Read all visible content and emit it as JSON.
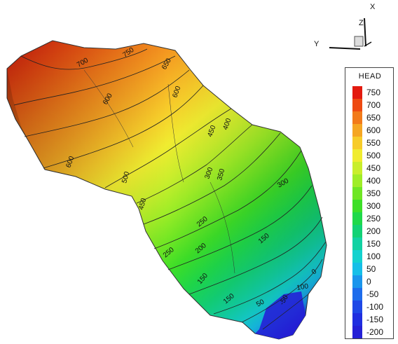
{
  "axes_triad": {
    "x": "X",
    "y": "Y",
    "z": "Z"
  },
  "legend": {
    "title": "HEAD",
    "entries": [
      {
        "label": "750",
        "color": "#e31a0f"
      },
      {
        "label": "700",
        "color": "#ee4a12"
      },
      {
        "label": "650",
        "color": "#f27a1a"
      },
      {
        "label": "600",
        "color": "#f5a623"
      },
      {
        "label": "550",
        "color": "#f7cc2a"
      },
      {
        "label": "500",
        "color": "#f0ec30"
      },
      {
        "label": "450",
        "color": "#c9ee2c"
      },
      {
        "label": "400",
        "color": "#9fed27"
      },
      {
        "label": "350",
        "color": "#6fe624"
      },
      {
        "label": "300",
        "color": "#3ddf28"
      },
      {
        "label": "250",
        "color": "#1fd94a"
      },
      {
        "label": "200",
        "color": "#13d275"
      },
      {
        "label": "150",
        "color": "#12d2a3"
      },
      {
        "label": "100",
        "color": "#14d2cf"
      },
      {
        "label": "50",
        "color": "#16bfe8"
      },
      {
        "label": "0",
        "color": "#1a95ec"
      },
      {
        "label": "-50",
        "color": "#1d6cec"
      },
      {
        "label": "-100",
        "color": "#1e48e6"
      },
      {
        "label": "-150",
        "color": "#1f2ee0"
      },
      {
        "label": "-200",
        "color": "#2420d6"
      }
    ]
  },
  "contour_labels": [
    "700",
    "750",
    "650",
    "600",
    "600",
    "450",
    "400",
    "600",
    "500",
    "350",
    "300",
    "450",
    "300",
    "250",
    "150",
    "250",
    "200",
    "150",
    "0",
    "100",
    "150",
    "50",
    "-50"
  ]
}
